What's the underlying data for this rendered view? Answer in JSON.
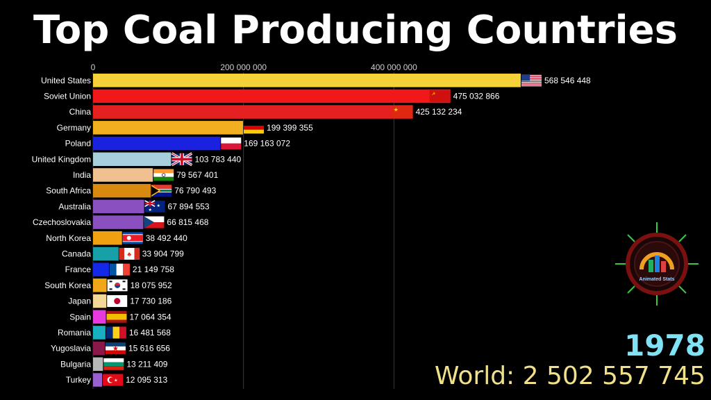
{
  "title": "Top Coal Producing Countries",
  "year": "1978",
  "world_label": "World: 2 502 557 745",
  "logo_text": "Animated Stats",
  "chart_data": {
    "type": "bar",
    "orientation": "horizontal",
    "title": "Top Coal Producing Countries",
    "xlabel": "",
    "ylabel": "",
    "xlim": [
      0,
      570000000
    ],
    "grid": true,
    "x_ticks": [
      {
        "value": 0,
        "label": "0"
      },
      {
        "value": 200000000,
        "label": "200 000 000"
      },
      {
        "value": 400000000,
        "label": "400 000 000"
      }
    ],
    "categories": [
      "United States",
      "Soviet Union",
      "China",
      "Germany",
      "Poland",
      "United Kingdom",
      "India",
      "South Africa",
      "Australia",
      "Czechoslovakia",
      "North Korea",
      "Canada",
      "France",
      "South Korea",
      "Japan",
      "Spain",
      "Romania",
      "Yugoslavia",
      "Bulgaria",
      "Turkey"
    ],
    "values": [
      568546448,
      475032866,
      425132234,
      199399355,
      169163072,
      103783440,
      79567401,
      76790493,
      67894553,
      66815468,
      38492440,
      33904799,
      21149758,
      18075952,
      17730186,
      17064354,
      16481568,
      15616656,
      13211409,
      12095313
    ],
    "value_labels": [
      "568 546 448",
      "475 032 866",
      "425 132 234",
      "199 399 355",
      "169 163 072",
      "103 783 440",
      "79 567 401",
      "76 790 493",
      "67 894 553",
      "66 815 468",
      "38 492 440",
      "33 904 799",
      "21 149 758",
      "18 075 952",
      "17 730 186",
      "17 064 354",
      "16 481 568",
      "15 616 656",
      "13 211 409",
      "12 095 313"
    ],
    "colors": [
      "#f5d23a",
      "#f01818",
      "#e52020",
      "#f2b020",
      "#1a22e0",
      "#a8d0dc",
      "#f0c090",
      "#d88a10",
      "#8a50c0",
      "#8a50c0",
      "#f0a010",
      "#18a0a8",
      "#1428e8",
      "#f0a818",
      "#f4d898",
      "#e838e0",
      "#18b0c0",
      "#8a1848",
      "#b8b8b8",
      "#9a60d0"
    ],
    "flags": [
      "us-flag",
      "ussr-flag",
      "china-flag",
      "germany-flag",
      "poland-flag",
      "uk-flag",
      "india-flag",
      "south-africa-flag",
      "australia-flag",
      "czechoslovakia-flag",
      "north-korea-flag",
      "canada-flag",
      "france-flag",
      "south-korea-flag",
      "japan-flag",
      "spain-flag",
      "romania-flag",
      "yugoslavia-flag",
      "bulgaria-flag",
      "turkey-flag"
    ]
  }
}
